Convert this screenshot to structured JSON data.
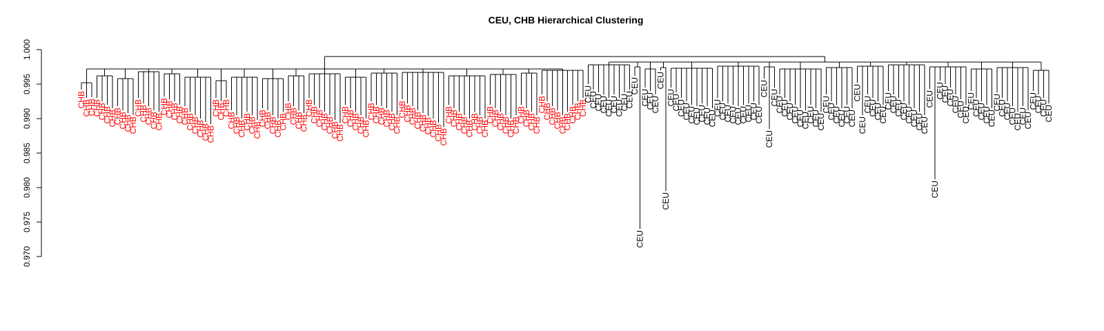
{
  "chart_data": {
    "type": "dendrogram",
    "title": "CEU, CHB Hierarchical Clustering",
    "ylim": [
      0.97,
      1.0
    ],
    "yticks": [
      {
        "value": 0.97,
        "label": "0.970"
      },
      {
        "value": 0.975,
        "label": "0.975"
      },
      {
        "value": 0.98,
        "label": "0.980"
      },
      {
        "value": 0.985,
        "label": "0.985"
      },
      {
        "value": 0.99,
        "label": "0.990"
      },
      {
        "value": 0.995,
        "label": "0.995"
      },
      {
        "value": 1.0,
        "label": "1.000"
      }
    ],
    "root_height": 0.999,
    "groups": [
      {
        "label": "CHB",
        "color": "#ff0000",
        "leaf_count": 100,
        "merge_height": 0.9972,
        "clusters": [
          {
            "height": 0.9952,
            "leaves": [
              0.9942,
              0.993,
              0.9931
            ]
          },
          {
            "height": 0.9962,
            "leaves": [
              0.993,
              0.9925,
              0.992,
              0.9915
            ]
          },
          {
            "height": 0.9958,
            "leaves": [
              0.9918,
              0.9912,
              0.9908,
              0.9905
            ]
          },
          {
            "height": 0.9968,
            "leaves": [
              0.993,
              0.9922,
              0.9918,
              0.9912,
              0.991
            ]
          },
          {
            "height": 0.9965,
            "leaves": [
              0.9932,
              0.9928,
              0.9925,
              0.992
            ]
          },
          {
            "height": 0.996,
            "leaves": [
              0.9918,
              0.991,
              0.9905,
              0.99,
              0.9895,
              0.9892
            ]
          },
          {
            "height": 0.9955,
            "leaves": [
              0.993,
              0.9925,
              0.993
            ]
          },
          {
            "height": 0.996,
            "leaves": [
              0.9912,
              0.9905,
              0.99,
              0.991,
              0.9905,
              0.9898
            ]
          },
          {
            "height": 0.9958,
            "leaves": [
              0.9915,
              0.9912,
              0.9905,
              0.99,
              0.991
            ]
          },
          {
            "height": 0.9962,
            "leaves": [
              0.9925,
              0.9918,
              0.9912,
              0.9908
            ]
          },
          {
            "height": 0.9965,
            "leaves": [
              0.993,
              0.992,
              0.9915,
              0.991,
              0.9905,
              0.9898,
              0.9894
            ]
          },
          {
            "height": 0.996,
            "leaves": [
              0.992,
              0.9915,
              0.991,
              0.9905,
              0.99
            ]
          },
          {
            "height": 0.9966,
            "leaves": [
              0.9925,
              0.992,
              0.9918,
              0.9915,
              0.991,
              0.9905
            ]
          },
          {
            "height": 0.9967,
            "leaves": [
              0.9928,
              0.9922,
              0.9918,
              0.9912,
              0.9908,
              0.9904,
              0.99,
              0.9894,
              0.9888
            ]
          },
          {
            "height": 0.9962,
            "leaves": [
              0.992,
              0.9915,
              0.991,
              0.9905,
              0.99,
              0.991,
              0.9905,
              0.99
            ]
          },
          {
            "height": 0.9964,
            "leaves": [
              0.992,
              0.9915,
              0.991,
              0.9905,
              0.99,
              0.9905
            ]
          },
          {
            "height": 0.9966,
            "leaves": [
              0.992,
              0.9915,
              0.991,
              0.9905
            ]
          },
          {
            "height": 0.997,
            "leaves": [
              0.9935,
              0.9925,
              0.9918,
              0.9912,
              0.9905,
              0.991,
              0.992,
              0.9925,
              0.993
            ]
          }
        ]
      },
      {
        "label": "CEU",
        "color": "#000000",
        "leaf_count": 107,
        "merge_height": 0.9982,
        "clusters": [
          {
            "height": 0.9978,
            "leaves": [
              0.995,
              0.9942,
              0.9938,
              0.9935,
              0.993,
              0.9935,
              0.993,
              0.9938,
              0.9942
            ]
          },
          {
            "height": 0.9975,
            "leaves": [
              0.9962,
              0.974
            ]
          },
          {
            "height": 0.9972,
            "leaves": [
              0.9945,
              0.994,
              0.9935
            ]
          },
          {
            "height": 0.9974,
            "leaves": [
              0.997,
              0.9795
            ]
          },
          {
            "height": 0.9973,
            "leaves": [
              0.9945,
              0.9938,
              0.993,
              0.9925,
              0.992,
              0.9918,
              0.9922,
              0.9918,
              0.9915
            ]
          },
          {
            "height": 0.9976,
            "leaves": [
              0.993,
              0.9925,
              0.9922,
              0.992,
              0.9918,
              0.992,
              0.9922,
              0.9925,
              0.992
            ]
          },
          {
            "height": 0.9975,
            "leaves": [
              0.9958,
              0.9885,
              0.9945
            ]
          },
          {
            "height": 0.9972,
            "leaves": [
              0.9935,
              0.993,
              0.9925,
              0.992,
              0.9915,
              0.9912,
              0.992,
              0.9915,
              0.991
            ]
          },
          {
            "height": 0.9974,
            "leaves": [
              0.9935,
              0.9925,
              0.992,
              0.9915,
              0.992,
              0.9915
            ]
          },
          {
            "height": 0.9976,
            "leaves": [
              0.9952,
              0.9905,
              0.9935,
              0.993,
              0.9925,
              0.992
            ]
          },
          {
            "height": 0.9978,
            "leaves": [
              0.994,
              0.9935,
              0.993,
              0.9925,
              0.992,
              0.9915,
              0.991,
              0.9905
            ]
          },
          {
            "height": 0.9975,
            "leaves": [
              0.9943,
              0.9812,
              0.9955,
              0.995,
              0.9945,
              0.9935,
              0.9928,
              0.992
            ]
          },
          {
            "height": 0.9972,
            "leaves": [
              0.994,
              0.993,
              0.9925,
              0.992,
              0.9915
            ]
          },
          {
            "height": 0.9974,
            "leaves": [
              0.9938,
              0.993,
              0.9925,
              0.9918,
              0.991,
              0.9918,
              0.9912
            ]
          },
          {
            "height": 0.997,
            "leaves": [
              0.994,
              0.9935,
              0.993,
              0.9922
            ]
          }
        ]
      }
    ]
  }
}
